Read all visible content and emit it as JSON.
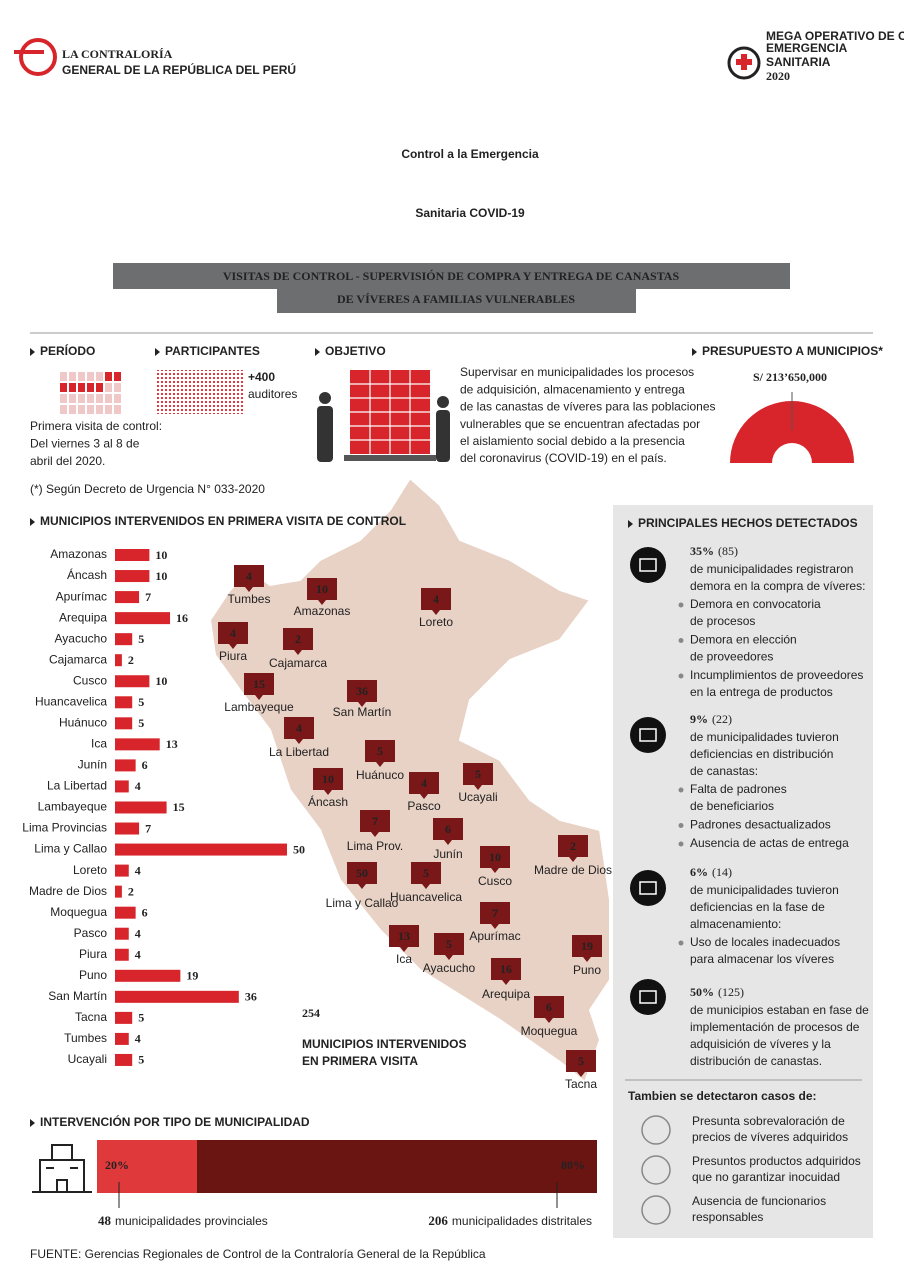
{
  "header": {
    "logo_left": {
      "name": "LA CONTRALORÍA",
      "subtitle": "GENERAL DE LA REPÚBLICA DEL PERÚ"
    },
    "logo_right": {
      "kicker": "MEGA OPERATIVO DE CONTROL",
      "line1": "EMERGENCIA",
      "line2": "SANITARIA",
      "year": "2020"
    },
    "title": [
      "Control a la Emergencia",
      "Sanitaria COVID-19"
    ],
    "subtitle": [
      "VISITAS DE CONTROL - SUPERVISIÓN DE COMPRA Y ENTREGA DE CANASTAS",
      "DE VÍVERES A FAMILIAS VULNERABLES"
    ]
  },
  "summary": {
    "period": {
      "heading": "PERÍODO",
      "text": [
        "Primera visita de control:",
        "Del viernes 3 al 8 de",
        "abril del 2020."
      ]
    },
    "participants": {
      "heading": "PARTICIPANTES",
      "count": "+400",
      "unit": "auditores"
    },
    "objective": {
      "heading": "OBJETIVO",
      "text": [
        "Supervisar en municipalidades los procesos",
        "de adquisición, almacenamiento y entrega",
        "de las canastas de víveres para las poblaciones",
        "vulnerables que se encuentran afectadas por",
        "el aislamiento social debido a la presencia",
        "del coronavirus (COVID-19) en el país."
      ]
    },
    "budget": {
      "heading": "PRESUPUESTO A MUNICIPIOS*",
      "amount": "S/ 213’650,000"
    },
    "note": "(*) Según Decreto de Urgencia N° 033-2020"
  },
  "chart_data": [
    {
      "type": "bar",
      "orientation": "horizontal",
      "title": "MUNICIPIOS INTERVENIDOS EN PRIMERA VISITA DE CONTROL",
      "categories": [
        "Amazonas",
        "Áncash",
        "Apurímac",
        "Arequipa",
        "Ayacucho",
        "Cajamarca",
        "Cusco",
        "Huancavelica",
        "Huánuco",
        "Ica",
        "Junín",
        "La Libertad",
        "Lambayeque",
        "Lima Provincias",
        "Lima y Callao",
        "Loreto",
        "Madre de Dios",
        "Moquegua",
        "Pasco",
        "Piura",
        "Puno",
        "San Martín",
        "Tacna",
        "Tumbes",
        "Ucayali"
      ],
      "values": [
        10,
        10,
        7,
        16,
        5,
        2,
        10,
        5,
        5,
        13,
        6,
        4,
        15,
        7,
        50,
        4,
        2,
        6,
        4,
        4,
        19,
        36,
        5,
        4,
        5
      ],
      "color": "#d7252b"
    },
    {
      "type": "stacked-bar",
      "title": "INTERVENCIÓN POR TIPO DE MUNICIPALIDAD",
      "series": [
        {
          "name": "municipalidades provinciales",
          "count": 48,
          "values": [
            20
          ],
          "value_labels": [
            "20%"
          ],
          "color": "#e0393c"
        },
        {
          "name": "municipalidades distritales",
          "count": 206,
          "values": [
            80
          ],
          "value_labels": [
            "80%"
          ],
          "color": "#6b1513"
        }
      ]
    }
  ],
  "map": {
    "markers": [
      {
        "name": "Tumbes",
        "value": 4
      },
      {
        "name": "Amazonas",
        "value": 10
      },
      {
        "name": "Loreto",
        "value": 4
      },
      {
        "name": "Piura",
        "value": 4
      },
      {
        "name": "Cajamarca",
        "value": 2
      },
      {
        "name": "Lambayeque",
        "value": 15
      },
      {
        "name": "San Martín",
        "value": 36
      },
      {
        "name": "La Libertad",
        "value": 4
      },
      {
        "name": "Huánuco",
        "value": 5
      },
      {
        "name": "Áncash",
        "value": 10
      },
      {
        "name": "Pasco",
        "value": 4
      },
      {
        "name": "Ucayali",
        "value": 5
      },
      {
        "name": "Lima Prov.",
        "value": 7
      },
      {
        "name": "Junín",
        "value": 6
      },
      {
        "name": "Cusco",
        "value": 10
      },
      {
        "name": "Madre de Dios",
        "value": 2
      },
      {
        "name": "Lima y Callao",
        "value": 50
      },
      {
        "name": "Huancavelica",
        "value": 5
      },
      {
        "name": "Apurímac",
        "value": 7
      },
      {
        "name": "Ica",
        "value": 13
      },
      {
        "name": "Ayacucho",
        "value": 5
      },
      {
        "name": "Puno",
        "value": 19
      },
      {
        "name": "Arequipa",
        "value": 16
      },
      {
        "name": "Moquegua",
        "value": 6
      },
      {
        "name": "Tacna",
        "value": 5
      }
    ],
    "total": 254,
    "total_label": [
      "MUNICIPIOS INTERVENIDOS",
      "EN PRIMERA VISITA"
    ]
  },
  "findings": {
    "heading": "PRINCIPALES HECHOS DETECTADOS",
    "facts": [
      {
        "percent": "35%",
        "count": "(85)",
        "text": [
          "de municipalidades registraron",
          "demora en la compra de víveres:"
        ],
        "items": [
          [
            "Demora en convocatoria",
            "de procesos"
          ],
          [
            "Demora en elección",
            "de proveedores"
          ],
          [
            "Incumplimientos de proveedores",
            "en la entrega de productos"
          ]
        ]
      },
      {
        "percent": "9%",
        "count": "(22)",
        "text": [
          "de municipalidades tuvieron",
          "deficiencias en distribución",
          "de canastas:"
        ],
        "items": [
          [
            "Falta de padrones",
            "de beneficiarios"
          ],
          [
            "Padrones desactualizados"
          ],
          [
            "Ausencia de actas de entrega"
          ]
        ]
      },
      {
        "percent": "6%",
        "count": "(14)",
        "text": [
          "de municipalidades tuvieron",
          "deficiencias en la fase de",
          "almacenamiento:"
        ],
        "items": [
          [
            "Uso de locales inadecuados",
            "para almacenar los víveres"
          ]
        ]
      },
      {
        "percent": "50%",
        "count": "(125)",
        "text": [
          "de municipios estaban en fase de",
          "implementación de procesos de",
          "adquisición de víveres y la",
          "distribución de canastas."
        ],
        "items": []
      }
    ],
    "other_heading": "Tambien se detectaron casos de:",
    "other": [
      [
        "Presunta sobrevaloración de",
        "precios de víveres adquiridos"
      ],
      [
        "Presuntos productos adquiridos",
        "que no garantizar inocuidad"
      ],
      [
        "Ausencia de funcionarios",
        "responsables"
      ]
    ]
  },
  "source": "FUENTE: Gerencias Regionales de Control de la Contraloría General de la República"
}
